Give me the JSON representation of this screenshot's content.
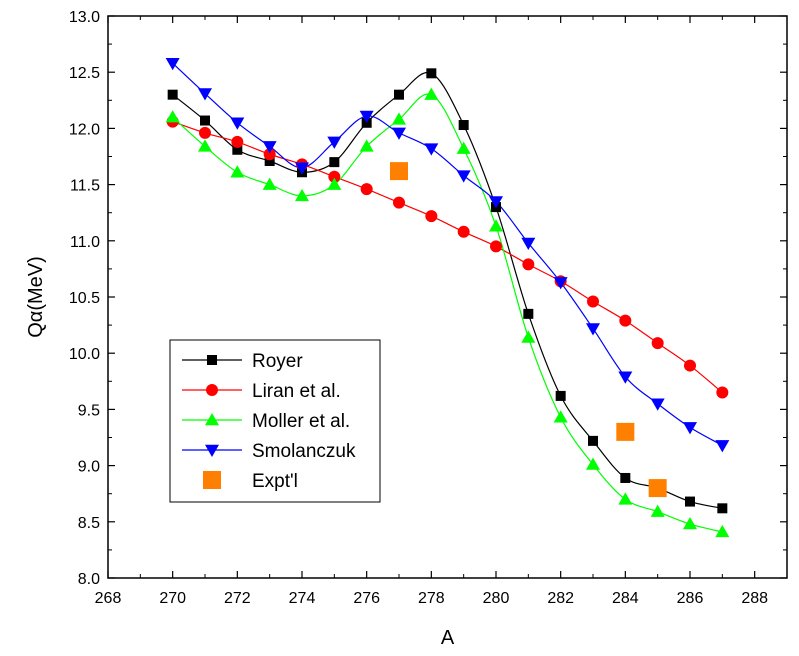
{
  "chart_data": {
    "type": "line",
    "xlabel": "A",
    "ylabel": "Qα(MeV)",
    "xlim": [
      268,
      289
    ],
    "ylim": [
      8.0,
      13.0
    ],
    "x_ticks": [
      "268",
      "270",
      "272",
      "274",
      "276",
      "278",
      "280",
      "282",
      "284",
      "286",
      "288"
    ],
    "y_ticks": [
      "8.0",
      "8.5",
      "9.0",
      "9.5",
      "10.0",
      "10.5",
      "11.0",
      "11.5",
      "12.0",
      "12.5",
      "13.0"
    ],
    "legend_position": "bottom-left",
    "series": [
      {
        "name": "Royer",
        "color": "#000000",
        "marker": "square",
        "line": true,
        "x": [
          270,
          271,
          272,
          273,
          274,
          275,
          276,
          277,
          278,
          279,
          280,
          281,
          282,
          283,
          284,
          285,
          286,
          287
        ],
        "y": [
          12.3,
          12.07,
          11.81,
          11.71,
          11.61,
          11.7,
          12.05,
          12.3,
          12.49,
          12.03,
          11.3,
          10.35,
          9.62,
          9.22,
          8.89,
          8.8,
          8.68,
          8.62
        ]
      },
      {
        "name": "Liran et al.",
        "color": "#ff0000",
        "marker": "circle",
        "line": true,
        "x": [
          270,
          271,
          272,
          273,
          274,
          275,
          276,
          277,
          278,
          279,
          280,
          281,
          282,
          283,
          284,
          285,
          286,
          287
        ],
        "y": [
          12.06,
          11.96,
          11.88,
          11.77,
          11.68,
          11.57,
          11.46,
          11.34,
          11.22,
          11.08,
          10.95,
          10.79,
          10.64,
          10.46,
          10.29,
          10.09,
          9.89,
          9.65
        ]
      },
      {
        "name": "Moller et al.",
        "color": "#00ff00",
        "marker": "triangle-up",
        "line": true,
        "x": [
          270,
          271,
          272,
          273,
          274,
          275,
          276,
          277,
          278,
          279,
          280,
          281,
          282,
          283,
          284,
          285,
          286,
          287
        ],
        "y": [
          12.1,
          11.84,
          11.61,
          11.5,
          11.4,
          11.5,
          11.84,
          12.08,
          12.3,
          11.82,
          11.13,
          10.14,
          9.43,
          9.01,
          8.7,
          8.59,
          8.48,
          8.41
        ]
      },
      {
        "name": "Smolanczuk",
        "color": "#0000ff",
        "marker": "triangle-down",
        "line": true,
        "x": [
          270,
          271,
          272,
          273,
          274,
          275,
          276,
          277,
          278,
          279,
          280,
          281,
          282,
          283,
          284,
          285,
          286,
          287
        ],
        "y": [
          12.58,
          12.31,
          12.05,
          11.84,
          11.65,
          11.88,
          12.11,
          11.96,
          11.82,
          11.58,
          11.35,
          10.98,
          10.63,
          10.22,
          9.79,
          9.55,
          9.34,
          9.18
        ]
      },
      {
        "name": "Expt'l",
        "color": "#ff8000",
        "marker": "big-square",
        "line": false,
        "x": [
          277,
          284,
          285
        ],
        "y": [
          11.62,
          9.3,
          8.8
        ]
      }
    ]
  }
}
